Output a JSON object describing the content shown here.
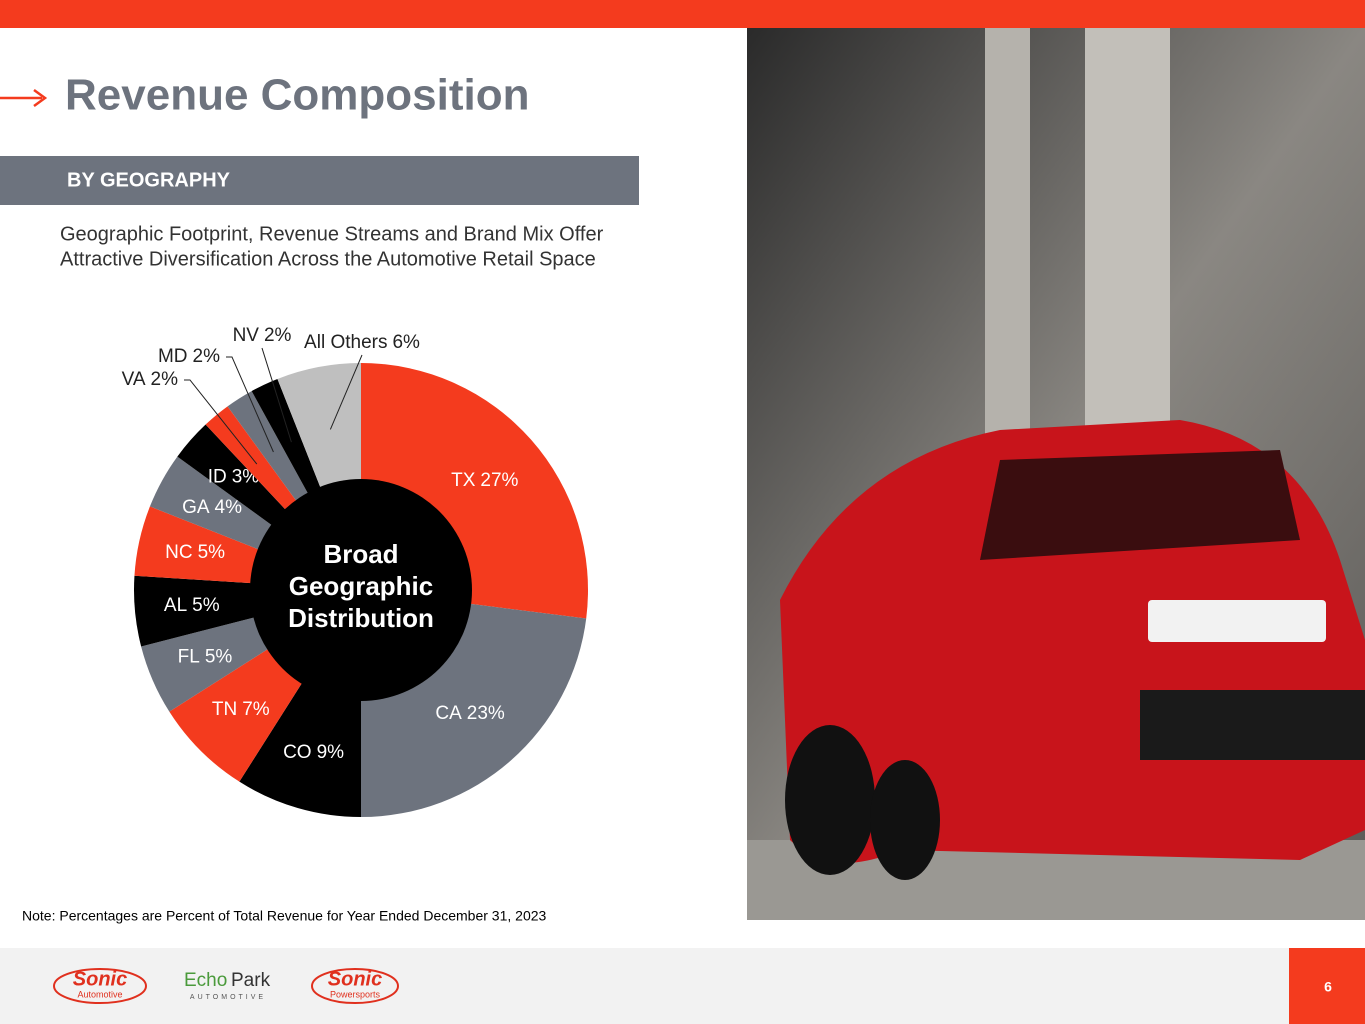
{
  "header": {
    "title": "Revenue Composition",
    "section": "BY GEOGRAPHY",
    "description": [
      "Geographic Footprint, Revenue Streams and Brand Mix Offer",
      "Attractive Diversification Across the Automotive Retail Space"
    ]
  },
  "chart_data": {
    "type": "donut",
    "categories": [
      "TX",
      "CA",
      "CO",
      "TN",
      "FL",
      "AL",
      "NC",
      "GA",
      "ID",
      "VA",
      "MD",
      "NV",
      "All Others"
    ],
    "values": [
      27,
      23,
      9,
      7,
      5,
      5,
      5,
      4,
      3,
      2,
      2,
      2,
      6
    ],
    "value_labels": [
      "27%",
      "23%",
      "9%",
      "7%",
      "5%",
      "5%",
      "5%",
      "4%",
      "3%",
      "2%",
      "2%",
      "2%",
      "6%"
    ],
    "colors": [
      "#f43b1e",
      "#6d737e",
      "#000000",
      "#f43b1e",
      "#6d737e",
      "#000000",
      "#f43b1e",
      "#6d737e",
      "#000000",
      "#f43b1e",
      "#6d737e",
      "#000000",
      "#bfbfbf"
    ],
    "center_label": [
      "Broad",
      "Geographic",
      "Distribution"
    ]
  },
  "note": "Note: Percentages are Percent of Total Revenue for Year Ended December 31, 2023",
  "footer": {
    "logos": [
      "Sonic",
      "Automotive",
      "Echo",
      "Park",
      "AUTOMOTIVE",
      "Sonic",
      "Powersports"
    ],
    "page": "6"
  }
}
